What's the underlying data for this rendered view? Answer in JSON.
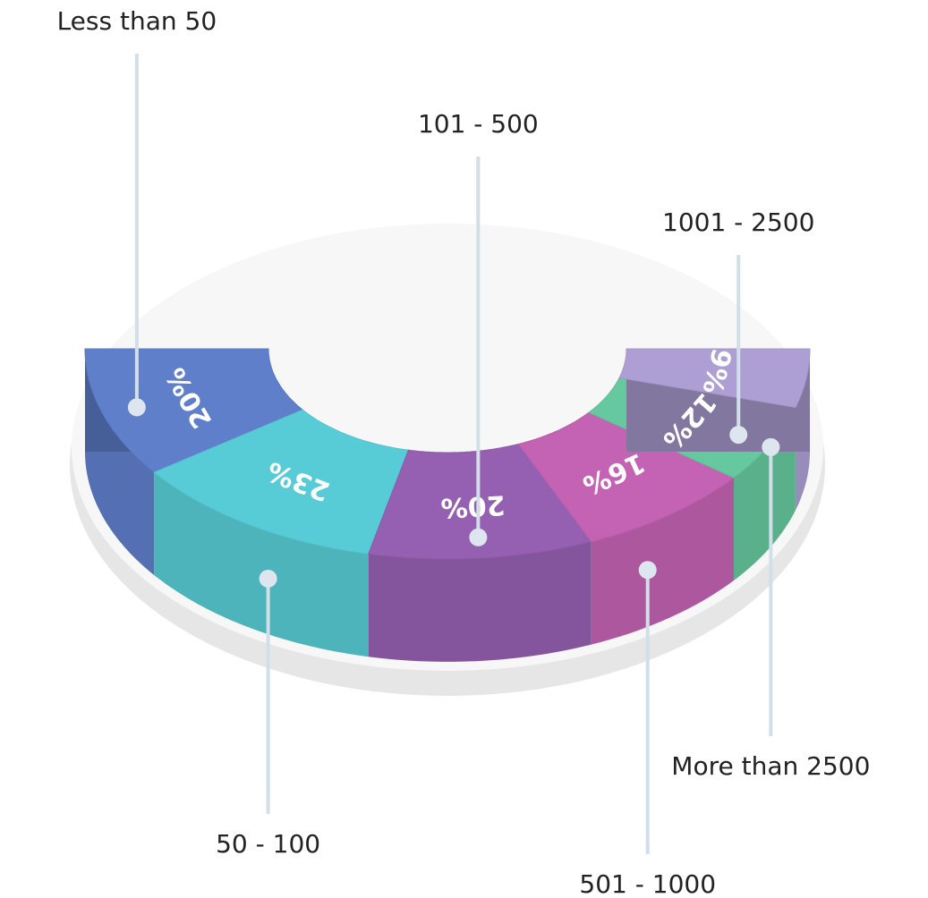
{
  "chart_data": {
    "type": "pie",
    "categories": [
      "Less than 50",
      "50 - 100",
      "101 - 500",
      "501 - 1000",
      "1001 - 2500",
      "More than 2500"
    ],
    "values": [
      20,
      23,
      20,
      16,
      12,
      9
    ],
    "value_labels": [
      "20%",
      "23%",
      "20%",
      "16%",
      "12%",
      "9%"
    ],
    "colors": [
      "#5f7fcb",
      "#58ccd6",
      "#9660b2",
      "#c463b3",
      "#66c89e",
      "#ad9fd4"
    ]
  }
}
